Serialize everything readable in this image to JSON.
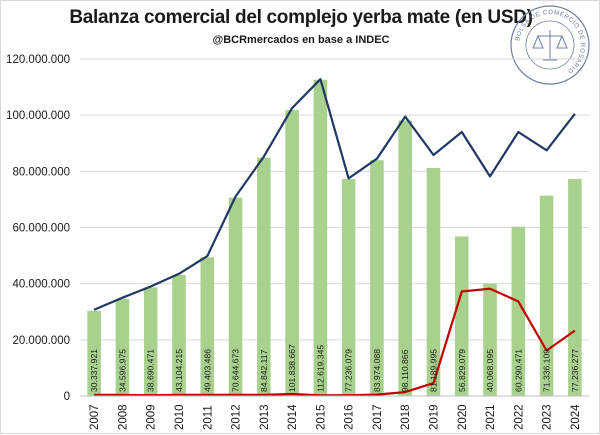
{
  "title": "Balanza comercial del complejo yerba mate (en USD)",
  "subtitle": "@BCRmercados en base a INDEC",
  "seal_text": "BOLSA DE COMERCIO DE ROSARIO",
  "chart_data": {
    "type": "bar",
    "categories": [
      "2007",
      "2008",
      "2009",
      "2010",
      "2011",
      "2012",
      "2013",
      "2014",
      "2015",
      "2016",
      "2017",
      "2018",
      "2019",
      "2020",
      "2021",
      "2022",
      "2023",
      "2024"
    ],
    "ylim": [
      0,
      120000000
    ],
    "yticks": [
      0,
      20000000,
      40000000,
      60000000,
      80000000,
      100000000,
      120000000
    ],
    "ytick_labels": [
      "0",
      "20.000.000",
      "40.000.000",
      "60.000.000",
      "80.000.000",
      "100.000.000",
      "120.000.000"
    ],
    "grid": true,
    "series": [
      {
        "type": "bar",
        "color": "#a9d18e",
        "values": [
          30337921,
          34596975,
          38690471,
          43104215,
          49403486,
          70644673,
          84842117,
          101838667,
          112619345,
          77236079,
          83974088,
          98110866,
          81189995,
          56829079,
          40068095,
          60290471,
          71336109,
          77236277
        ],
        "labels": [
          "30.337.921",
          "34.596.975",
          "38.690.471",
          "43.104.215",
          "49.403.486",
          "70.644.673",
          "84.842.117",
          "101.838.667",
          "112.619.345",
          "77.236.079",
          "83.974.088",
          "98.110.866",
          "81.189.995",
          "56.829.079",
          "40.068.095",
          "60.290.471",
          "71.336.109",
          "77.236.277"
        ]
      },
      {
        "type": "line",
        "color": "#1f3864",
        "values": [
          30700000,
          35000000,
          39000000,
          43500000,
          49800000,
          71000000,
          85200000,
          102500000,
          112800000,
          77500000,
          84500000,
          99500000,
          85800000,
          94000000,
          78200000,
          94000000,
          87500000,
          100500000
        ]
      },
      {
        "type": "line",
        "color": "#c00000",
        "values": [
          400000,
          400000,
          300000,
          400000,
          400000,
          400000,
          400000,
          700000,
          200000,
          300000,
          500000,
          1400000,
          4600000,
          37200000,
          38200000,
          33700000,
          16200000,
          23300000
        ]
      }
    ]
  }
}
